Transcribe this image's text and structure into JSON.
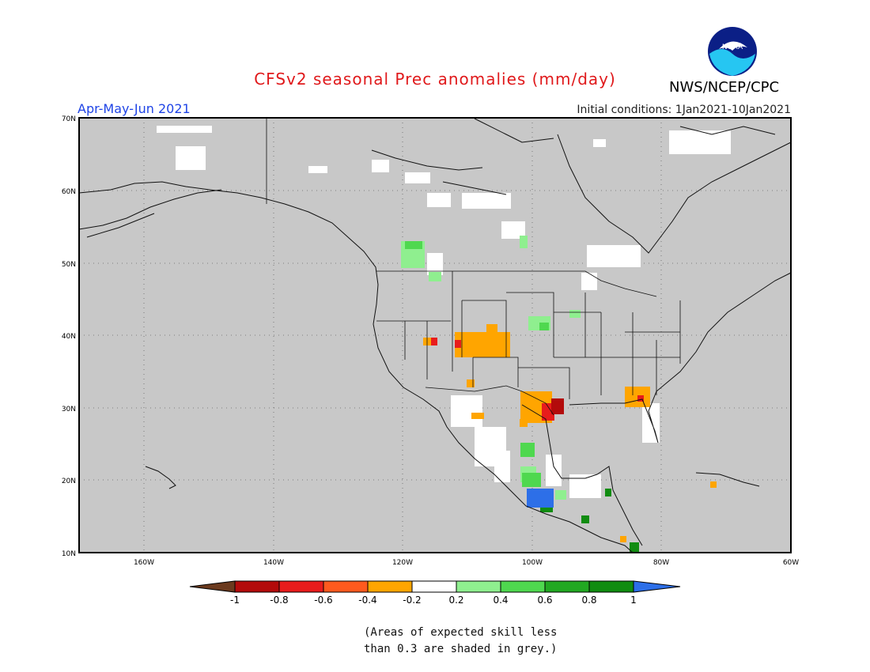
{
  "header": {
    "title": "CFSv2 seasonal Prec anomalies (mm/day)",
    "period": "Apr-May-Jun 2021",
    "initial_conditions": "Initial conditions: 1Jan2021-10Jan2021",
    "agency": "NWS/NCEP/CPC",
    "logo_text": "NOAA"
  },
  "map": {
    "lat_labels": [
      "70N",
      "60N",
      "50N",
      "40N",
      "30N",
      "20N",
      "10N"
    ],
    "lon_labels": [
      "160W",
      "140W",
      "120W",
      "100W",
      "80W",
      "60W"
    ],
    "background_color": "#c8c8c8"
  },
  "colorbar": {
    "tick_labels": [
      "-1",
      "-0.8",
      "-0.6",
      "-0.4",
      "-0.2",
      "0.2",
      "0.4",
      "0.6",
      "0.8",
      "1"
    ],
    "colors": [
      "#6b3a1e",
      "#b30b0b",
      "#e81c1c",
      "#ff5a1e",
      "#ffa500",
      "#ffffff",
      "#8fef8f",
      "#4fd84f",
      "#22a822",
      "#118c11",
      "#2d6fe8"
    ]
  },
  "caption": {
    "line1": "(Areas of expected skill less",
    "line2": "than 0.3 are shaded in grey.)"
  }
}
